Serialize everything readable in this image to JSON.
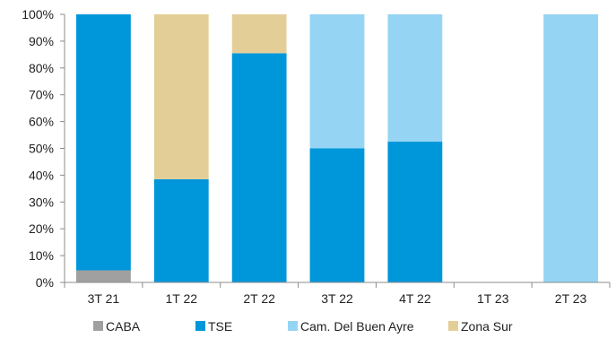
{
  "chart_data": {
    "type": "bar",
    "stacked": true,
    "normalized": true,
    "categories": [
      "3T 21",
      "1T 22",
      "2T 22",
      "3T 22",
      "4T 22",
      "1T 23",
      "2T 23"
    ],
    "series": [
      {
        "name": "CABA",
        "color": "#A0A0A0",
        "values": [
          4.5,
          0,
          0,
          0,
          0,
          0,
          0
        ]
      },
      {
        "name": "TSE",
        "color": "#0096DA",
        "values": [
          95.5,
          38.5,
          85.5,
          50,
          52.5,
          0,
          0
        ]
      },
      {
        "name": "Cam. Del Buen Ayre",
        "color": "#96D4F3",
        "values": [
          0,
          0,
          0,
          50,
          47.5,
          0,
          100
        ]
      },
      {
        "name": "Zona Sur",
        "color": "#E4CE98",
        "values": [
          0,
          61.5,
          14.5,
          0,
          0,
          0,
          0
        ]
      }
    ],
    "ylim": [
      0,
      100
    ],
    "yticks": [
      "0%",
      "10%",
      "20%",
      "30%",
      "40%",
      "50%",
      "60%",
      "70%",
      "80%",
      "90%",
      "100%"
    ],
    "grid": false,
    "legend_position": "bottom"
  }
}
